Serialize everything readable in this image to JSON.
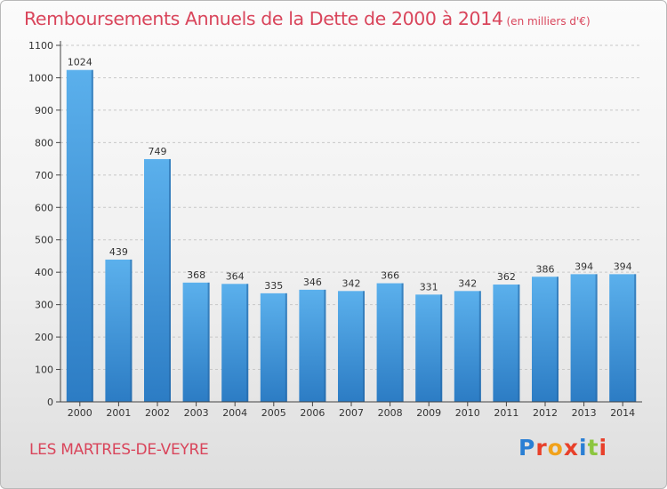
{
  "header": {
    "title": "Remboursements Annuels de la Dette de 2000 à 2014",
    "subtitle": "(en milliers d'€)"
  },
  "footer": {
    "town": "LES MARTRES-DE-VEYRE",
    "logo_text": "Proxiti",
    "logo_colors": [
      "#2a7fd4",
      "#e8402a",
      "#f1a21b",
      "#e8402a",
      "#2a7fd4",
      "#8cc63f",
      "#e8402a"
    ]
  },
  "chart_data": {
    "type": "bar",
    "title": "Remboursements Annuels de la Dette de 2000 à 2014",
    "subtitle": "(en milliers d'€)",
    "xlabel": "",
    "ylabel": "",
    "ylim": [
      0,
      1100
    ],
    "yticks": [
      0,
      100,
      200,
      300,
      400,
      500,
      600,
      700,
      800,
      900,
      1000,
      1100
    ],
    "grid": "horizontal dashed",
    "bar_color": "#4a9fe0",
    "categories": [
      "2000",
      "2001",
      "2002",
      "2003",
      "2004",
      "2005",
      "2006",
      "2007",
      "2008",
      "2009",
      "2010",
      "2011",
      "2012",
      "2013",
      "2014"
    ],
    "values": [
      1024,
      439,
      749,
      368,
      364,
      335,
      346,
      342,
      366,
      331,
      342,
      362,
      386,
      394,
      394
    ]
  }
}
